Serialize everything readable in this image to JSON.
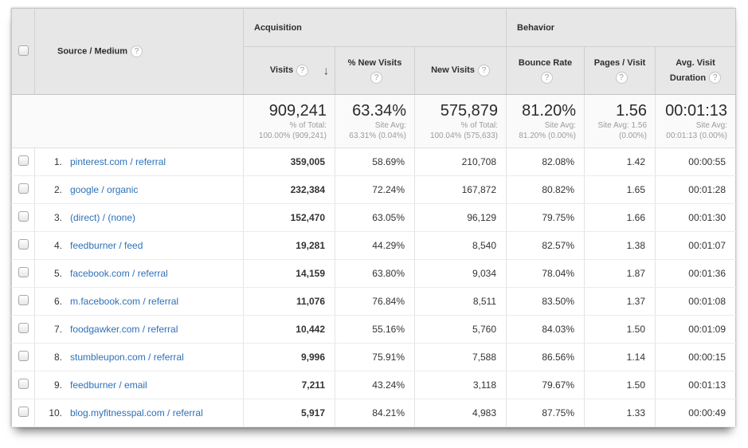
{
  "table": {
    "header": {
      "source_medium": "Source / Medium",
      "help_icon": "?",
      "sort_arrow": "↓",
      "groups": [
        {
          "label": "Acquisition"
        },
        {
          "label": "Behavior"
        }
      ],
      "columns": [
        "Visits",
        "% New Visits",
        "New Visits",
        "Bounce Rate",
        "Pages / Visit",
        "Avg. Visit Duration"
      ]
    },
    "summary": {
      "visits": {
        "value": "909,241",
        "sub_label": "% of Total:",
        "sub_value": "100.00% (909,241)"
      },
      "pct_new_visits": {
        "value": "63.34%",
        "sub_label": "Site Avg:",
        "sub_value": "63.31% (0.04%)"
      },
      "new_visits": {
        "value": "575,879",
        "sub_label": "% of Total:",
        "sub_value": "100.04% (575,633)"
      },
      "bounce_rate": {
        "value": "81.20%",
        "sub_label": "Site Avg:",
        "sub_value": "81.20% (0.00%)"
      },
      "pages_visit": {
        "value": "1.56",
        "sub_label": "Site Avg: 1.56",
        "sub_value": "(0.00%)"
      },
      "avg_duration": {
        "value": "00:01:13",
        "sub_label": "Site Avg:",
        "sub_value": "00:01:13 (0.00%)"
      }
    },
    "rows": [
      {
        "index": "1.",
        "source": "pinterest.com / referral",
        "visits": "359,005",
        "pct_new": "58.69%",
        "new_visits": "210,708",
        "bounce": "82.08%",
        "pages": "1.42",
        "duration": "00:00:55"
      },
      {
        "index": "2.",
        "source": "google / organic",
        "visits": "232,384",
        "pct_new": "72.24%",
        "new_visits": "167,872",
        "bounce": "80.82%",
        "pages": "1.65",
        "duration": "00:01:28"
      },
      {
        "index": "3.",
        "source": "(direct) / (none)",
        "visits": "152,470",
        "pct_new": "63.05%",
        "new_visits": "96,129",
        "bounce": "79.75%",
        "pages": "1.66",
        "duration": "00:01:30"
      },
      {
        "index": "4.",
        "source": "feedburner / feed",
        "visits": "19,281",
        "pct_new": "44.29%",
        "new_visits": "8,540",
        "bounce": "82.57%",
        "pages": "1.38",
        "duration": "00:01:07"
      },
      {
        "index": "5.",
        "source": "facebook.com / referral",
        "visits": "14,159",
        "pct_new": "63.80%",
        "new_visits": "9,034",
        "bounce": "78.04%",
        "pages": "1.87",
        "duration": "00:01:36"
      },
      {
        "index": "6.",
        "source": "m.facebook.com / referral",
        "visits": "11,076",
        "pct_new": "76.84%",
        "new_visits": "8,511",
        "bounce": "83.50%",
        "pages": "1.37",
        "duration": "00:01:08"
      },
      {
        "index": "7.",
        "source": "foodgawker.com / referral",
        "visits": "10,442",
        "pct_new": "55.16%",
        "new_visits": "5,760",
        "bounce": "84.03%",
        "pages": "1.50",
        "duration": "00:01:09"
      },
      {
        "index": "8.",
        "source": "stumbleupon.com / referral",
        "visits": "9,996",
        "pct_new": "75.91%",
        "new_visits": "7,588",
        "bounce": "86.56%",
        "pages": "1.14",
        "duration": "00:00:15"
      },
      {
        "index": "9.",
        "source": "feedburner / email",
        "visits": "7,211",
        "pct_new": "43.24%",
        "new_visits": "3,118",
        "bounce": "79.67%",
        "pages": "1.50",
        "duration": "00:01:13"
      },
      {
        "index": "10.",
        "source": "blog.myfitnesspal.com / referral",
        "visits": "5,917",
        "pct_new": "84.21%",
        "new_visits": "4,983",
        "bounce": "87.75%",
        "pages": "1.33",
        "duration": "00:00:49"
      }
    ]
  }
}
